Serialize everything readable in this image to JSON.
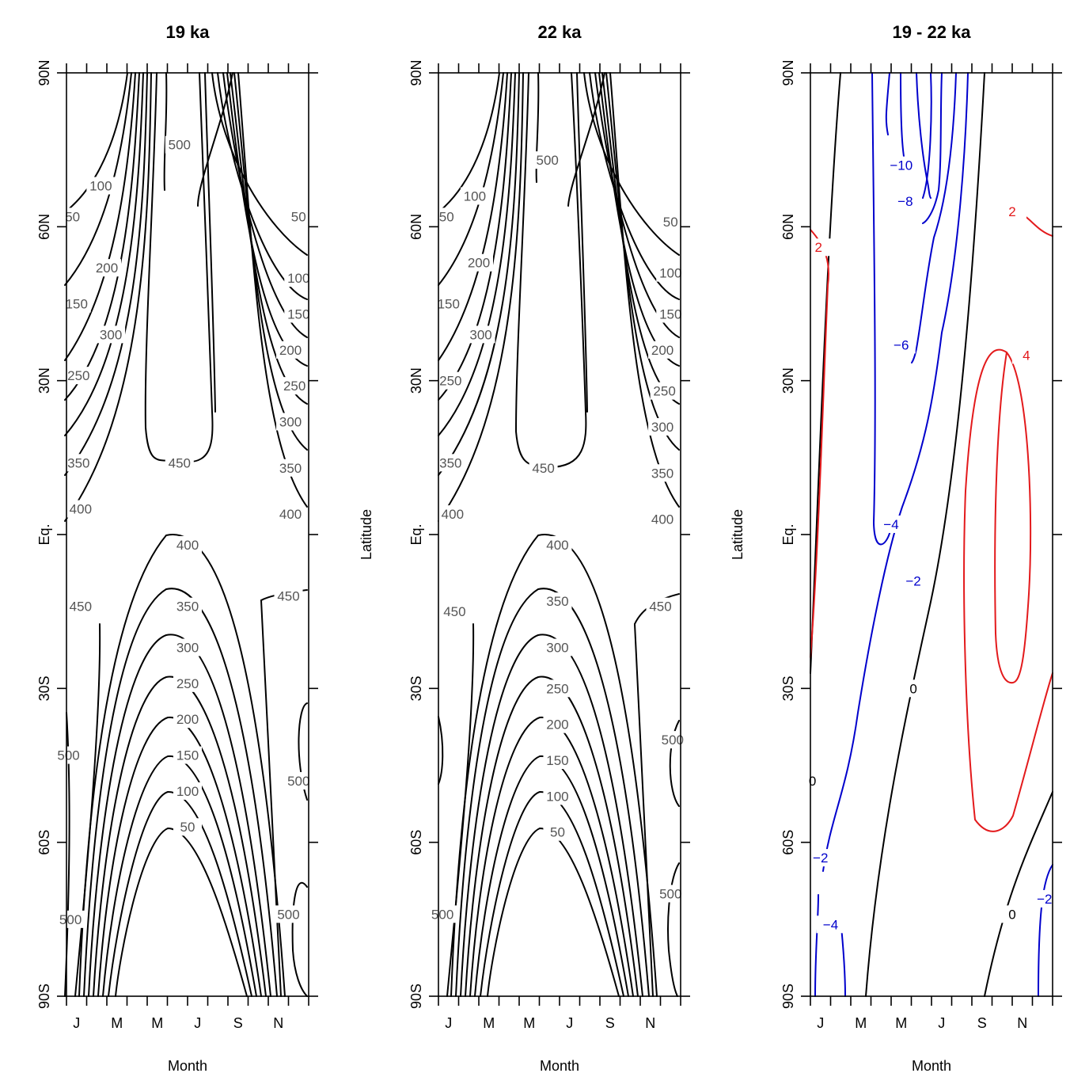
{
  "chart_data": [
    {
      "type": "contour",
      "title": "19 ka",
      "xlabel": "Month",
      "ylabel": "",
      "x_ticks": [
        "J",
        "M",
        "M",
        "J",
        "S",
        "N"
      ],
      "y_ticks": [
        "90N",
        "60N",
        "30N",
        "Eq.",
        "30S",
        "60S",
        "90S"
      ],
      "colors": {
        "lines": "#000000",
        "labels": "#555555"
      },
      "contours": [
        {
          "label": "50",
          "value": 50,
          "pos": [
            [
              0.3,
              62
            ],
            [
              11.5,
              62
            ],
            [
              6.0,
              -57
            ]
          ]
        },
        {
          "label": "100",
          "value": 100,
          "pos": [
            [
              1.7,
              68
            ],
            [
              11.5,
              50
            ],
            [
              6.0,
              -50
            ]
          ]
        },
        {
          "label": "150",
          "value": 150,
          "pos": [
            [
              0.5,
              45
            ],
            [
              11.5,
              43
            ],
            [
              6.0,
              -43
            ]
          ]
        },
        {
          "label": "200",
          "value": 200,
          "pos": [
            [
              2.0,
              52
            ],
            [
              11.1,
              36
            ],
            [
              6.0,
              -36
            ]
          ]
        },
        {
          "label": "250",
          "value": 250,
          "pos": [
            [
              0.6,
              31
            ],
            [
              11.3,
              29
            ],
            [
              6.0,
              -29
            ]
          ]
        },
        {
          "label": "300",
          "value": 300,
          "pos": [
            [
              2.2,
              39
            ],
            [
              11.1,
              22
            ],
            [
              6.0,
              -22
            ]
          ]
        },
        {
          "label": "350",
          "value": 350,
          "pos": [
            [
              0.6,
              14
            ],
            [
              11.1,
              13
            ],
            [
              6.0,
              -14
            ]
          ]
        },
        {
          "label": "400",
          "value": 400,
          "pos": [
            [
              0.7,
              5
            ],
            [
              11.1,
              4
            ],
            [
              6.0,
              -2
            ]
          ]
        },
        {
          "label": "450",
          "value": 450,
          "pos": [
            [
              5.6,
              14
            ],
            [
              0.7,
              -14
            ],
            [
              11.0,
              -12
            ]
          ]
        },
        {
          "label": "500",
          "value": 500,
          "pos": [
            [
              5.6,
              76
            ],
            [
              0.1,
              -43
            ],
            [
              11.5,
              -48
            ],
            [
              0.2,
              -75
            ],
            [
              11.0,
              -74
            ]
          ]
        }
      ]
    },
    {
      "type": "contour",
      "title": "22 ka",
      "xlabel": "Month",
      "ylabel": "Latitude",
      "x_ticks": [
        "J",
        "M",
        "M",
        "J",
        "S",
        "N"
      ],
      "y_ticks": [
        "90N",
        "60N",
        "30N",
        "Eq.",
        "30S",
        "60S",
        "90S"
      ],
      "colors": {
        "lines": "#000000",
        "labels": "#555555"
      },
      "contours": [
        {
          "label": "50",
          "value": 50,
          "pos": [
            [
              0.4,
              62
            ],
            [
              11.5,
              61
            ],
            [
              5.9,
              -58
            ]
          ]
        },
        {
          "label": "100",
          "value": 100,
          "pos": [
            [
              1.8,
              66
            ],
            [
              11.5,
              51
            ],
            [
              5.9,
              -51
            ]
          ]
        },
        {
          "label": "150",
          "value": 150,
          "pos": [
            [
              0.5,
              45
            ],
            [
              11.5,
              43
            ],
            [
              5.9,
              -44
            ]
          ]
        },
        {
          "label": "200",
          "value": 200,
          "pos": [
            [
              2.0,
              53
            ],
            [
              11.1,
              36
            ],
            [
              5.9,
              -37
            ]
          ]
        },
        {
          "label": "250",
          "value": 250,
          "pos": [
            [
              0.6,
              30
            ],
            [
              11.2,
              28
            ],
            [
              5.9,
              -30
            ]
          ]
        },
        {
          "label": "300",
          "value": 300,
          "pos": [
            [
              2.1,
              39
            ],
            [
              11.1,
              21
            ],
            [
              5.9,
              -22
            ]
          ]
        },
        {
          "label": "350",
          "value": 350,
          "pos": [
            [
              0.6,
              14
            ],
            [
              11.1,
              12
            ],
            [
              5.9,
              -13
            ]
          ]
        },
        {
          "label": "400",
          "value": 400,
          "pos": [
            [
              0.7,
              4
            ],
            [
              11.1,
              3
            ],
            [
              5.9,
              -2
            ]
          ]
        },
        {
          "label": "450",
          "value": 450,
          "pos": [
            [
              5.2,
              13
            ],
            [
              0.8,
              -15
            ],
            [
              11.0,
              -14
            ]
          ]
        },
        {
          "label": "500",
          "value": 500,
          "pos": [
            [
              5.4,
              73
            ],
            [
              11.6,
              -40
            ],
            [
              0.2,
              -74
            ],
            [
              11.5,
              -70
            ]
          ]
        }
      ]
    },
    {
      "type": "contour",
      "title": "19 - 22 ka",
      "xlabel": "Month",
      "ylabel": "Latitude",
      "x_ticks": [
        "J",
        "M",
        "M",
        "J",
        "S",
        "N"
      ],
      "y_ticks": [
        "90N",
        "60N",
        "30N",
        "Eq.",
        "30S",
        "60S",
        "90S"
      ],
      "colors": {
        "negative": "#0000cc",
        "zero": "#000000",
        "positive": "#e31a1c"
      },
      "contours": [
        {
          "label": "2",
          "value": 2,
          "pos": [
            [
              0.4,
              56
            ],
            [
              10.0,
              63
            ]
          ]
        },
        {
          "label": "4",
          "value": 4,
          "pos": [
            [
              10.7,
              35
            ]
          ]
        },
        {
          "label": "0",
          "value": 0,
          "pos": [
            [
              5.1,
              -30
            ],
            [
              0.1,
              -48
            ],
            [
              10.0,
              -74
            ]
          ]
        },
        {
          "label": "-2",
          "value": -2,
          "pos": [
            [
              5.1,
              -9
            ],
            [
              0.5,
              -63
            ],
            [
              11.6,
              -71
            ]
          ]
        },
        {
          "label": "-4",
          "value": -4,
          "pos": [
            [
              4.0,
              2
            ],
            [
              1.0,
              -76
            ]
          ]
        },
        {
          "label": "-6",
          "value": -6,
          "pos": [
            [
              4.5,
              37
            ]
          ]
        },
        {
          "label": "-8",
          "value": -8,
          "pos": [
            [
              4.7,
              65
            ]
          ]
        },
        {
          "label": "-10",
          "value": -10,
          "pos": [
            [
              4.5,
              72
            ]
          ]
        }
      ]
    }
  ]
}
